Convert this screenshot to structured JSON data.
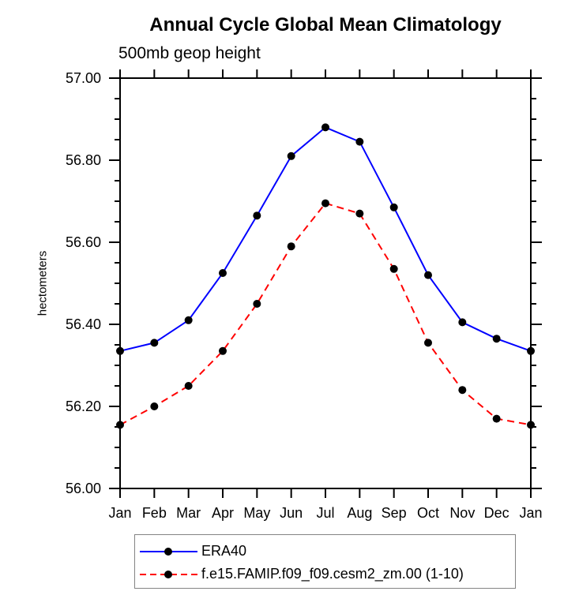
{
  "chart_data": {
    "type": "line",
    "title": "Annual Cycle Global Mean Climatology",
    "subtitle": "500mb geop height",
    "ylabel": "hectometers",
    "categories": [
      "Jan",
      "Feb",
      "Mar",
      "Apr",
      "May",
      "Jun",
      "Jul",
      "Aug",
      "Sep",
      "Oct",
      "Nov",
      "Dec",
      "Jan"
    ],
    "ylim": [
      56.0,
      57.0
    ],
    "ytick_major_step": 0.2,
    "ytick_minor_step": 0.05,
    "ytick_labels": [
      "57.00",
      "56.80",
      "56.60",
      "56.40",
      "56.20",
      "56.00"
    ],
    "grid": false,
    "legend_position": "bottom-left",
    "legend_border_color": "#848484",
    "axis_color": "#000000",
    "series": [
      {
        "name": "ERA40",
        "color": "#0000ff",
        "style": "solid",
        "marker": "circle",
        "marker_color": "#000000",
        "values": [
          56.335,
          56.355,
          56.41,
          56.525,
          56.665,
          56.81,
          56.88,
          56.845,
          56.685,
          56.52,
          56.405,
          56.365,
          56.335
        ]
      },
      {
        "name": "f.e15.FAMIP.f09_f09.cesm2_zm.00 (1-10)",
        "color": "#ff0000",
        "style": "dashed",
        "marker": "circle",
        "marker_color": "#000000",
        "values": [
          56.155,
          56.2,
          56.25,
          56.335,
          56.45,
          56.59,
          56.695,
          56.67,
          56.535,
          56.355,
          56.24,
          56.17,
          56.155
        ]
      }
    ]
  }
}
